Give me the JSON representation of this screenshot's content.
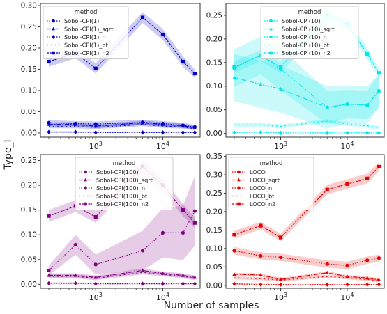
{
  "figure": {
    "ylabel": "Type_I",
    "xlabel": "Number of samples"
  },
  "chart_data": [
    {
      "type": "line",
      "panel": "top-left",
      "color": "#0000cc",
      "xscale": "log",
      "x": [
        200,
        500,
        1000,
        5000,
        10000,
        20000,
        30000
      ],
      "xticks": [
        {
          "value": 1000,
          "label": "10^3"
        },
        {
          "value": 10000,
          "label": "10^4"
        }
      ],
      "ylim": [
        -0.01,
        0.305
      ],
      "yticks": [
        "0.00",
        "0.05",
        "0.10",
        "0.15",
        "0.20",
        "0.25",
        "0.30"
      ],
      "legend": {
        "title": "method",
        "position": "top-left"
      },
      "series": [
        {
          "name": "Sobol-CPI(1)",
          "marker": "circle",
          "dash": "dotted",
          "values": [
            0.024,
            0.022,
            0.021,
            0.025,
            0.022,
            0.018,
            0.014
          ],
          "band": [
            0.006,
            0.006,
            0.006,
            0.006,
            0.006,
            0.006,
            0.005
          ]
        },
        {
          "name": "Sobol-CPI(1)_sqrt",
          "marker": "triangle",
          "dash": "dashdot",
          "values": [
            0.02,
            0.02,
            0.016,
            0.024,
            0.02,
            0.017,
            0.012
          ],
          "band": [
            0.005,
            0.005,
            0.005,
            0.005,
            0.005,
            0.005,
            0.004
          ]
        },
        {
          "name": "Sobol-CPI(1)_n",
          "marker": "diamond",
          "dash": "dotted",
          "values": [
            0.002,
            0.002,
            0.001,
            0.001,
            0.001,
            0.001,
            0.001
          ],
          "band": [
            0.002,
            0.002,
            0.001,
            0.001,
            0.001,
            0.001,
            0.001
          ]
        },
        {
          "name": "Sobol-CPI(1)_bt",
          "marker": "none",
          "dash": "loosedash",
          "values": [
            0.015,
            0.015,
            0.013,
            0.02,
            0.016,
            0.014,
            0.01
          ],
          "band": [
            0.004,
            0.004,
            0.004,
            0.004,
            0.004,
            0.004,
            0.004
          ]
        },
        {
          "name": "Sobol-CPI(1)_n2",
          "marker": "square",
          "dash": "densedash",
          "values": [
            0.168,
            0.188,
            0.152,
            0.272,
            0.232,
            0.168,
            0.14
          ],
          "band": [
            0.012,
            0.012,
            0.012,
            0.013,
            0.013,
            0.012,
            0.01
          ]
        }
      ]
    },
    {
      "type": "line",
      "panel": "top-right",
      "color": "#00e6e6",
      "xscale": "log",
      "x": [
        200,
        500,
        1000,
        5000,
        10000,
        20000,
        30000
      ],
      "xticks": [
        {
          "value": 1000,
          "label": "10^3"
        },
        {
          "value": 10000,
          "label": "10^4"
        }
      ],
      "ylim": [
        -0.008,
        0.275
      ],
      "yticks": [
        "0.00",
        "0.05",
        "0.10",
        "0.15",
        "0.20",
        "0.25"
      ],
      "legend": {
        "title": "method",
        "position": "top-center"
      },
      "series": [
        {
          "name": "Sobol-CPI(10)",
          "marker": "circle",
          "dash": "dotted",
          "values": [
            0.138,
            0.165,
            0.136,
            0.055,
            0.062,
            0.06,
            0.09
          ],
          "band": [
            0.04,
            0.04,
            0.045,
            0.035,
            0.03,
            0.03,
            0.035
          ]
        },
        {
          "name": "Sobol-CPI(10)_sqrt",
          "marker": "triangle",
          "dash": "dashdot",
          "values": [
            0.118,
            0.104,
            0.094,
            0.055,
            0.062,
            0.06,
            0.09
          ],
          "band": [
            0.05,
            0.05,
            0.05,
            0.045,
            0.04,
            0.04,
            0.035
          ]
        },
        {
          "name": "Sobol-CPI(10)_n",
          "marker": "diamond",
          "dash": "dotted",
          "values": [
            0.002,
            0.002,
            0.001,
            0.001,
            0.001,
            0.001,
            0.001
          ],
          "band": [
            0.002,
            0.002,
            0.001,
            0.001,
            0.001,
            0.001,
            0.001
          ]
        },
        {
          "name": "Sobol-CPI(10)_bt",
          "marker": "none",
          "dash": "loosedash",
          "values": [
            0.018,
            0.018,
            0.015,
            0.026,
            0.02,
            0.016,
            0.012
          ],
          "band": [
            0.004,
            0.004,
            0.004,
            0.004,
            0.004,
            0.004,
            0.004
          ]
        },
        {
          "name": "Sobol-CPI(10)_n2",
          "marker": "square",
          "dash": "densedash",
          "values": [
            0.14,
            0.165,
            0.14,
            0.25,
            0.232,
            0.168,
            0.128
          ],
          "band": [
            0.012,
            0.012,
            0.012,
            0.013,
            0.013,
            0.012,
            0.01
          ]
        }
      ]
    },
    {
      "type": "line",
      "panel": "bottom-left",
      "color": "#800080",
      "xscale": "log",
      "x": [
        200,
        500,
        1000,
        5000,
        10000,
        20000,
        30000
      ],
      "xticks": [
        {
          "value": 1000,
          "label": "10^3"
        },
        {
          "value": 10000,
          "label": "10^4"
        }
      ],
      "ylim": [
        -0.008,
        0.262
      ],
      "yticks": [
        "0.00",
        "0.05",
        "0.10",
        "0.15",
        "0.20",
        "0.25"
      ],
      "legend": {
        "title": "method",
        "position": "top-center"
      },
      "series": [
        {
          "name": "Sobol-CPI(100)",
          "marker": "circle",
          "dash": "dotted",
          "values": [
            0.028,
            0.08,
            0.04,
            0.068,
            0.104,
            0.104,
            0.148
          ],
          "band": [
            0.01,
            0.02,
            0.02,
            0.04,
            0.05,
            0.055,
            0.07
          ]
        },
        {
          "name": "Sobol-CPI(100)_sqrt",
          "marker": "triangle",
          "dash": "dashdot",
          "values": [
            0.018,
            0.018,
            0.014,
            0.028,
            0.022,
            0.018,
            0.014
          ],
          "band": [
            0.004,
            0.004,
            0.004,
            0.004,
            0.004,
            0.004,
            0.004
          ]
        },
        {
          "name": "Sobol-CPI(100)_n",
          "marker": "diamond",
          "dash": "dotted",
          "values": [
            0.002,
            0.002,
            0.001,
            0.001,
            0.001,
            0.001,
            0.001
          ],
          "band": [
            0.002,
            0.002,
            0.001,
            0.001,
            0.001,
            0.001,
            0.001
          ]
        },
        {
          "name": "Sobol-CPI(100)_bt",
          "marker": "none",
          "dash": "loosedash",
          "values": [
            0.016,
            0.016,
            0.012,
            0.024,
            0.02,
            0.016,
            0.012
          ],
          "band": [
            0.004,
            0.004,
            0.004,
            0.004,
            0.004,
            0.004,
            0.004
          ]
        },
        {
          "name": "Sobol-CPI(100)_n2",
          "marker": "square",
          "dash": "densedash",
          "values": [
            0.138,
            0.158,
            0.136,
            0.238,
            0.2,
            0.15,
            0.124
          ],
          "band": [
            0.012,
            0.012,
            0.012,
            0.013,
            0.013,
            0.012,
            0.01
          ]
        }
      ]
    },
    {
      "type": "line",
      "panel": "bottom-right",
      "color": "#e60000",
      "xscale": "log",
      "x": [
        200,
        500,
        1000,
        5000,
        10000,
        20000,
        30000
      ],
      "xticks": [
        {
          "value": 1000,
          "label": "10^3"
        },
        {
          "value": 10000,
          "label": "10^4"
        }
      ],
      "ylim": [
        -0.008,
        0.355
      ],
      "yticks": [
        "0.00",
        "0.05",
        "0.10",
        "0.15",
        "0.20",
        "0.25",
        "0.30",
        "0.35"
      ],
      "legend": {
        "title": "method",
        "position": "top-left"
      },
      "series": [
        {
          "name": "LOCO",
          "marker": "circle",
          "dash": "dotted",
          "values": [
            0.094,
            0.08,
            0.076,
            0.058,
            0.054,
            0.068,
            0.074
          ],
          "band": [
            0.01,
            0.01,
            0.01,
            0.01,
            0.01,
            0.01,
            0.01
          ]
        },
        {
          "name": "LOCO_sqrt",
          "marker": "triangle",
          "dash": "dashdot",
          "values": [
            0.03,
            0.028,
            0.016,
            0.034,
            0.024,
            0.02,
            0.015
          ],
          "band": [
            0.004,
            0.004,
            0.004,
            0.004,
            0.004,
            0.004,
            0.004
          ]
        },
        {
          "name": "LOCO_n",
          "marker": "diamond",
          "dash": "dotted",
          "values": [
            0.004,
            0.002,
            0.002,
            0.002,
            0.002,
            0.002,
            0.002
          ],
          "band": [
            0.002,
            0.002,
            0.001,
            0.001,
            0.001,
            0.001,
            0.001
          ]
        },
        {
          "name": "LOCO_bt",
          "marker": "none",
          "dash": "loosedash",
          "values": [
            0.02,
            0.018,
            0.014,
            0.024,
            0.02,
            0.016,
            0.012
          ],
          "band": [
            0.004,
            0.004,
            0.004,
            0.004,
            0.004,
            0.004,
            0.004
          ]
        },
        {
          "name": "LOCO_n2",
          "marker": "square",
          "dash": "densedash",
          "values": [
            0.138,
            0.162,
            0.13,
            0.26,
            0.275,
            0.29,
            0.322
          ],
          "band": [
            0.01,
            0.01,
            0.01,
            0.013,
            0.013,
            0.013,
            0.012
          ]
        }
      ]
    }
  ]
}
